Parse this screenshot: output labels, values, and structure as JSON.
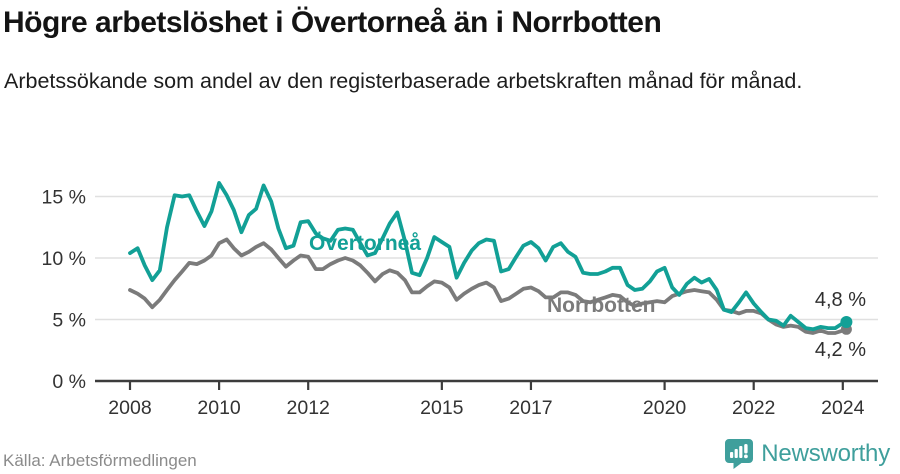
{
  "chart_data": {
    "type": "line",
    "title": "Högre arbetslöshet i Övertorneå än i Norrbotten",
    "subtitle": "Arbetssökande som andel av den registerbaserade arbetskraften månad för månad.",
    "source": "Källa: Arbetsförmedlingen",
    "x_unit": "decimal year (monthly data)",
    "xlim": [
      2007.2,
      2024.8
    ],
    "ylim": [
      0,
      17
    ],
    "grid": true,
    "x_ticks": [
      2008,
      2010,
      2012,
      2015,
      2017,
      2020,
      2022,
      2024
    ],
    "y_ticks": [
      {
        "value": 0,
        "label": "0 %"
      },
      {
        "value": 5,
        "label": "5 %"
      },
      {
        "value": 10,
        "label": "10 %"
      },
      {
        "value": 15,
        "label": "15 %"
      }
    ],
    "x": [
      2008,
      2008.17,
      2008.33,
      2008.5,
      2008.67,
      2008.83,
      2009,
      2009.17,
      2009.33,
      2009.5,
      2009.67,
      2009.83,
      2010,
      2010.17,
      2010.33,
      2010.5,
      2010.67,
      2010.83,
      2011,
      2011.17,
      2011.33,
      2011.5,
      2011.67,
      2011.83,
      2012,
      2012.17,
      2012.33,
      2012.5,
      2012.67,
      2012.83,
      2013,
      2013.17,
      2013.33,
      2013.5,
      2013.67,
      2013.83,
      2014,
      2014.17,
      2014.33,
      2014.5,
      2014.67,
      2014.83,
      2015,
      2015.17,
      2015.33,
      2015.5,
      2015.67,
      2015.83,
      2016,
      2016.17,
      2016.33,
      2016.5,
      2016.67,
      2016.83,
      2017,
      2017.17,
      2017.33,
      2017.5,
      2017.67,
      2017.83,
      2018,
      2018.17,
      2018.33,
      2018.5,
      2018.67,
      2018.83,
      2019,
      2019.17,
      2019.33,
      2019.5,
      2019.67,
      2019.83,
      2020,
      2020.17,
      2020.33,
      2020.5,
      2020.67,
      2020.83,
      2021,
      2021.17,
      2021.33,
      2021.5,
      2021.67,
      2021.83,
      2022,
      2022.17,
      2022.33,
      2022.5,
      2022.67,
      2022.83,
      2023,
      2023.17,
      2023.33,
      2023.5,
      2023.67,
      2023.83,
      2024,
      2024.08
    ],
    "series": [
      {
        "name": "Övertorneå",
        "color": "#12a096",
        "end_label": "4,8 %",
        "end_value": 4.8,
        "values": [
          10.4,
          10.8,
          9.4,
          8.2,
          9.0,
          12.5,
          15.1,
          15.0,
          15.1,
          13.8,
          12.6,
          13.8,
          16.1,
          15.1,
          13.9,
          12.1,
          13.5,
          14.0,
          15.9,
          14.6,
          12.4,
          10.8,
          11.0,
          12.9,
          13.0,
          12.0,
          11.6,
          11.4,
          12.3,
          12.4,
          12.3,
          11.2,
          10.2,
          10.4,
          11.6,
          12.8,
          13.7,
          11.4,
          8.8,
          8.6,
          10.0,
          11.7,
          11.3,
          10.9,
          8.4,
          9.6,
          10.6,
          11.2,
          11.5,
          11.4,
          8.9,
          9.1,
          10.1,
          11.0,
          11.3,
          10.8,
          9.8,
          10.9,
          11.2,
          10.5,
          10.1,
          8.8,
          8.7,
          8.7,
          8.9,
          9.2,
          9.2,
          7.8,
          7.4,
          7.5,
          8.1,
          8.9,
          9.2,
          7.6,
          7.0,
          7.9,
          8.4,
          8.0,
          8.3,
          7.4,
          5.8,
          5.6,
          6.4,
          7.2,
          6.3,
          5.6,
          5.0,
          4.9,
          4.5,
          5.3,
          4.8,
          4.3,
          4.2,
          4.4,
          4.3,
          4.3,
          4.7,
          4.8
        ]
      },
      {
        "name": "Norrbotten",
        "color": "#7b7b7b",
        "end_label": "4,2 %",
        "end_value": 4.2,
        "values": [
          7.4,
          7.1,
          6.7,
          6.0,
          6.6,
          7.4,
          8.2,
          8.9,
          9.6,
          9.5,
          9.8,
          10.2,
          11.2,
          11.5,
          10.8,
          10.2,
          10.5,
          10.9,
          11.2,
          10.7,
          10.0,
          9.3,
          9.8,
          10.2,
          10.1,
          9.1,
          9.1,
          9.5,
          9.8,
          10.0,
          9.8,
          9.4,
          8.8,
          8.1,
          8.7,
          9.0,
          8.8,
          8.2,
          7.2,
          7.2,
          7.7,
          8.1,
          8.0,
          7.6,
          6.6,
          7.1,
          7.5,
          7.8,
          8.0,
          7.6,
          6.5,
          6.7,
          7.1,
          7.5,
          7.6,
          7.3,
          6.8,
          6.8,
          7.2,
          7.2,
          7.0,
          6.5,
          6.4,
          6.6,
          6.8,
          7.0,
          6.9,
          6.4,
          6.1,
          6.3,
          6.4,
          6.5,
          6.4,
          6.9,
          7.1,
          7.3,
          7.4,
          7.3,
          7.2,
          6.6,
          5.8,
          5.7,
          5.5,
          5.7,
          5.7,
          5.5,
          5.0,
          4.6,
          4.4,
          4.5,
          4.4,
          4.0,
          3.9,
          4.1,
          3.9,
          3.9,
          4.1,
          4.2
        ]
      }
    ],
    "legend_position": "inline-labels",
    "axis_color": "#3c3c3c",
    "grid_color": "#e0e0e0",
    "tick_label_color": "#333333"
  },
  "branding": {
    "name": "Newsworthy",
    "color": "#3f9f9c"
  }
}
